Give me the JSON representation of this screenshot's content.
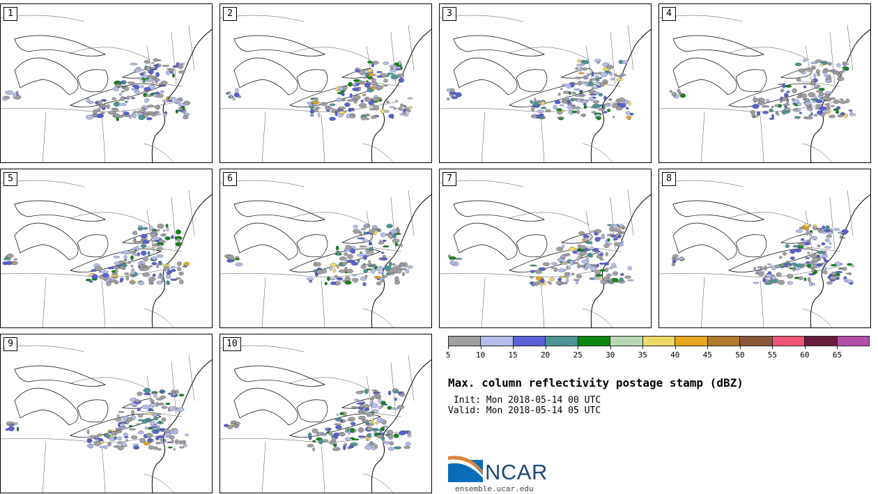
{
  "panels": [
    {
      "label": "1"
    },
    {
      "label": "2"
    },
    {
      "label": "3"
    },
    {
      "label": "4"
    },
    {
      "label": "5"
    },
    {
      "label": "6"
    },
    {
      "label": "7"
    },
    {
      "label": "8"
    },
    {
      "label": "9"
    },
    {
      "label": "10"
    }
  ],
  "colorbar": {
    "tick_labels": [
      "5",
      "10",
      "15",
      "20",
      "25",
      "30",
      "35",
      "40",
      "45",
      "50",
      "55",
      "60",
      "65"
    ],
    "colors": [
      "#a0a0a0",
      "#b4bde8",
      "#5860d4",
      "#4b9694",
      "#0f8812",
      "#b9d9b6",
      "#eed868",
      "#e8a81e",
      "#b47a30",
      "#8b5538",
      "#ee5576",
      "#6c1c3c",
      "#b24fa8"
    ]
  },
  "title": "Max. column reflectivity postage stamp (dBZ)",
  "init_label": " Init: Mon 2018-05-14 00 UTC",
  "valid_label": "Valid: Mon 2018-05-14 05 UTC",
  "logo_text": "NCAR",
  "url": "ensemble.ucar.edu"
}
